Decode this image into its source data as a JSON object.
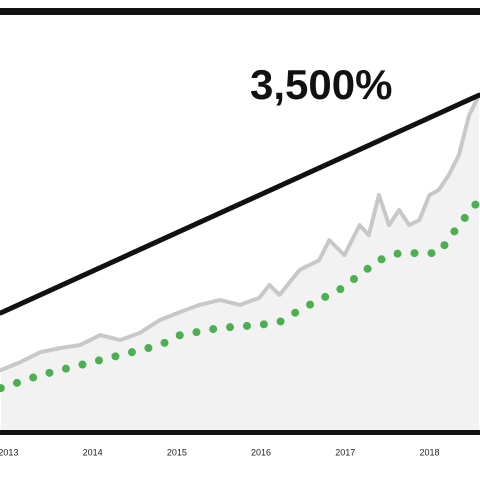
{
  "chart_data": {
    "type": "line",
    "annotation": "3,500%",
    "xlim": [
      2012.9,
      2018.6
    ],
    "xticks": [
      2013,
      2014,
      2015,
      2016,
      2017,
      2018
    ],
    "ylim": [
      0,
      100
    ],
    "grid": false,
    "series": [
      {
        "color": "#c8c8c8",
        "fill": "#f2f2f2",
        "style": "solid",
        "x": [
          2012.91,
          2013.14,
          2013.38,
          2013.62,
          2013.85,
          2014.09,
          2014.33,
          2014.56,
          2014.8,
          2015.04,
          2015.27,
          2015.51,
          2015.75,
          2015.98,
          2016.1,
          2016.22,
          2016.46,
          2016.69,
          2016.81,
          2016.99,
          2017.17,
          2017.28,
          2017.4,
          2017.52,
          2017.64,
          2017.76,
          2017.88,
          2018.0,
          2018.11,
          2018.23,
          2018.35,
          2018.47,
          2018.59
        ],
        "values": [
          14.8,
          16.7,
          19.1,
          20.1,
          20.8,
          23.2,
          22.0,
          23.7,
          26.8,
          28.7,
          30.4,
          31.6,
          30.4,
          32.1,
          35.2,
          32.8,
          38.8,
          41.1,
          45.9,
          42.3,
          49.5,
          47.1,
          56.7,
          49.5,
          53.1,
          49.5,
          50.7,
          56.7,
          57.9,
          61.5,
          66.3,
          75.8,
          80.6
        ]
      },
      {
        "color": "#4caf50",
        "style": "dotted",
        "x": [
          2012.91,
          2013.38,
          2013.85,
          2014.33,
          2014.8,
          2015.04,
          2015.51,
          2015.98,
          2016.22,
          2016.46,
          2016.69,
          2016.93,
          2017.17,
          2017.4,
          2017.64,
          2017.88,
          2018.11,
          2018.35,
          2018.59
        ],
        "values": [
          10.5,
          13.6,
          16.0,
          18.4,
          20.8,
          23.2,
          24.9,
          25.6,
          26.3,
          29.2,
          31.6,
          34.0,
          37.6,
          41.1,
          42.8,
          42.8,
          42.8,
          49.5,
          55.5
        ]
      },
      {
        "color": "#111111",
        "style": "solid",
        "x": [
          2012.91,
          2018.59
        ],
        "values": [
          28.5,
          80.6
        ]
      }
    ]
  }
}
